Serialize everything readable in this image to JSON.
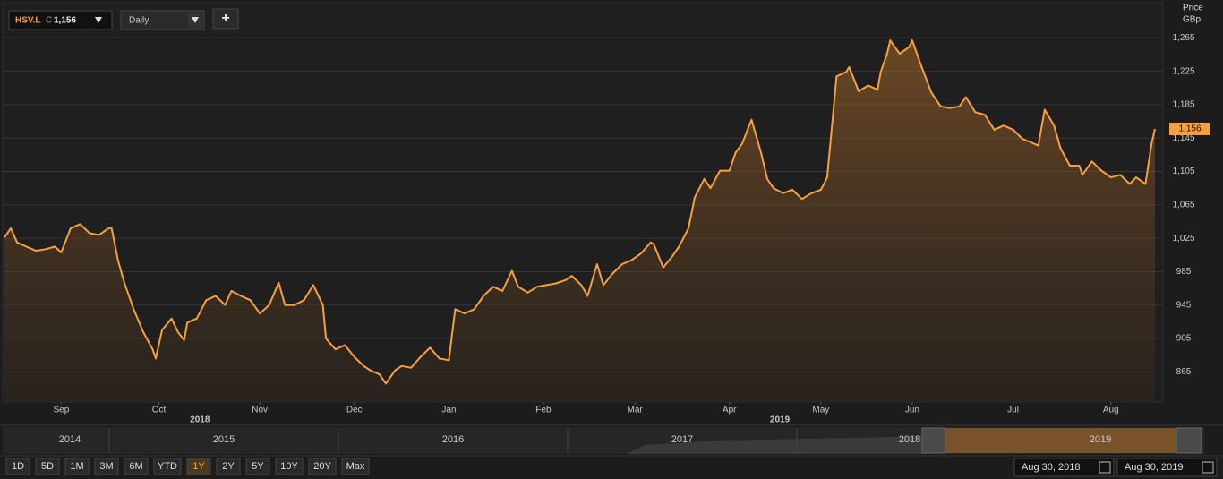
{
  "chart_data": {
    "type": "line",
    "series": [
      {
        "name": "HSV.L",
        "color": "#f7a03c",
        "x": [
          0,
          2,
          4,
          7,
          10,
          13,
          16,
          18,
          21,
          24,
          27,
          30,
          33,
          34,
          36,
          38,
          41,
          44,
          47,
          48,
          50,
          53,
          55,
          57,
          58,
          61,
          64,
          67,
          70,
          72,
          75,
          78,
          81,
          84,
          87,
          89,
          92,
          95,
          98,
          101,
          102,
          105,
          108,
          111,
          114,
          116,
          119,
          121,
          124,
          126,
          129,
          132,
          135,
          138,
          141,
          143,
          146,
          149,
          152,
          155,
          158,
          161,
          163,
          166,
          169,
          172,
          175,
          178,
          180,
          183,
          185,
          188,
          190,
          193,
          196,
          199,
          202,
          205,
          206,
          209,
          212,
          214,
          217,
          219,
          222,
          224,
          227,
          230,
          232,
          234,
          237,
          240,
          242,
          244,
          247,
          250,
          253,
          256,
          259,
          260,
          261,
          264,
          267,
          268,
          271,
          274,
          277,
          278,
          280,
          281,
          284,
          287,
          288,
          291,
          294,
          297,
          300,
          303,
          305,
          308,
          311,
          314,
          317,
          320,
          323,
          325,
          328,
          330,
          333,
          335,
          338,
          341,
          342,
          345,
          348,
          351,
          354,
          357,
          359,
          362,
          364,
          365
        ],
        "values": [
          1026,
          1037,
          1020,
          1015,
          1010,
          1012,
          1015,
          1008,
          1037,
          1042,
          1031,
          1029,
          1037,
          1037,
          999,
          972,
          940,
          913,
          892,
          881,
          915,
          929,
          913,
          903,
          924,
          929,
          951,
          956,
          945,
          962,
          956,
          951,
          935,
          945,
          972,
          945,
          945,
          951,
          969,
          945,
          905,
          892,
          897,
          883,
          872,
          867,
          862,
          851,
          867,
          872,
          870,
          883,
          894,
          881,
          879,
          940,
          935,
          940,
          956,
          967,
          962,
          986,
          967,
          960,
          967,
          969,
          971,
          975,
          980,
          969,
          956,
          994,
          969,
          983,
          994,
          999,
          1007,
          1020,
          1018,
          990,
          1004,
          1015,
          1037,
          1074,
          1096,
          1085,
          1106,
          1106,
          1128,
          1138,
          1167,
          1128,
          1096,
          1085,
          1079,
          1083,
          1072,
          1079,
          1083,
          1090,
          1098,
          1219,
          1224,
          1230,
          1201,
          1208,
          1203,
          1224,
          1246,
          1262,
          1246,
          1254,
          1262,
          1230,
          1200,
          1183,
          1181,
          1183,
          1194,
          1176,
          1173,
          1155,
          1160,
          1155,
          1144,
          1141,
          1136,
          1179,
          1160,
          1133,
          1112,
          1112,
          1101,
          1117,
          1106,
          1098,
          1101,
          1090,
          1098,
          1090,
          1140,
          1156
        ]
      }
    ],
    "current_price_label": "1,156",
    "xlim": [
      0,
      365
    ],
    "xticks": [
      {
        "value": 18,
        "label": "Sep"
      },
      {
        "value": 49,
        "label": "Oct"
      },
      {
        "value": 81,
        "label": "Nov"
      },
      {
        "value": 111,
        "label": "Dec"
      },
      {
        "value": 141,
        "label": "Jan"
      },
      {
        "value": 171,
        "label": "Feb"
      },
      {
        "value": 200,
        "label": "Mar"
      },
      {
        "value": 230,
        "label": "Apr"
      },
      {
        "value": 259,
        "label": "May"
      },
      {
        "value": 288,
        "label": "Jun"
      },
      {
        "value": 320,
        "label": "Jul"
      },
      {
        "value": 351,
        "label": "Aug"
      }
    ],
    "year_ticks": [
      {
        "value": 62,
        "label": "2018"
      },
      {
        "value": 246,
        "label": "2019"
      }
    ],
    "ylim": [
      830,
      1305
    ],
    "yticks": [
      865,
      905,
      945,
      985,
      {
        "value": 1025,
        "label": "1,025"
      },
      {
        "value": 1065,
        "label": "1,065"
      },
      {
        "value": 1105,
        "label": "1,105"
      },
      {
        "value": 1145,
        "label": "1,145"
      },
      {
        "value": 1185,
        "label": "1,185"
      },
      {
        "value": 1225,
        "label": "1,225"
      },
      {
        "value": 1265,
        "label": "1,265"
      }
    ],
    "y_axis_label": "Price",
    "y_axis_unit": "GBp",
    "grid": true
  },
  "ui": {
    "close_marker": "C",
    "interval": "Daily",
    "add_button": "+",
    "navigator_years": [
      "2014",
      "2015",
      "2016",
      "2017",
      "2018",
      "2019"
    ],
    "ranges": [
      "1D",
      "5D",
      "1M",
      "3M",
      "6M",
      "YTD",
      "1Y",
      "2Y",
      "5Y",
      "10Y",
      "20Y",
      "Max"
    ],
    "active_range_index": 6,
    "start_date": "Aug 30, 2018",
    "end_date": "Aug 30, 2019"
  }
}
